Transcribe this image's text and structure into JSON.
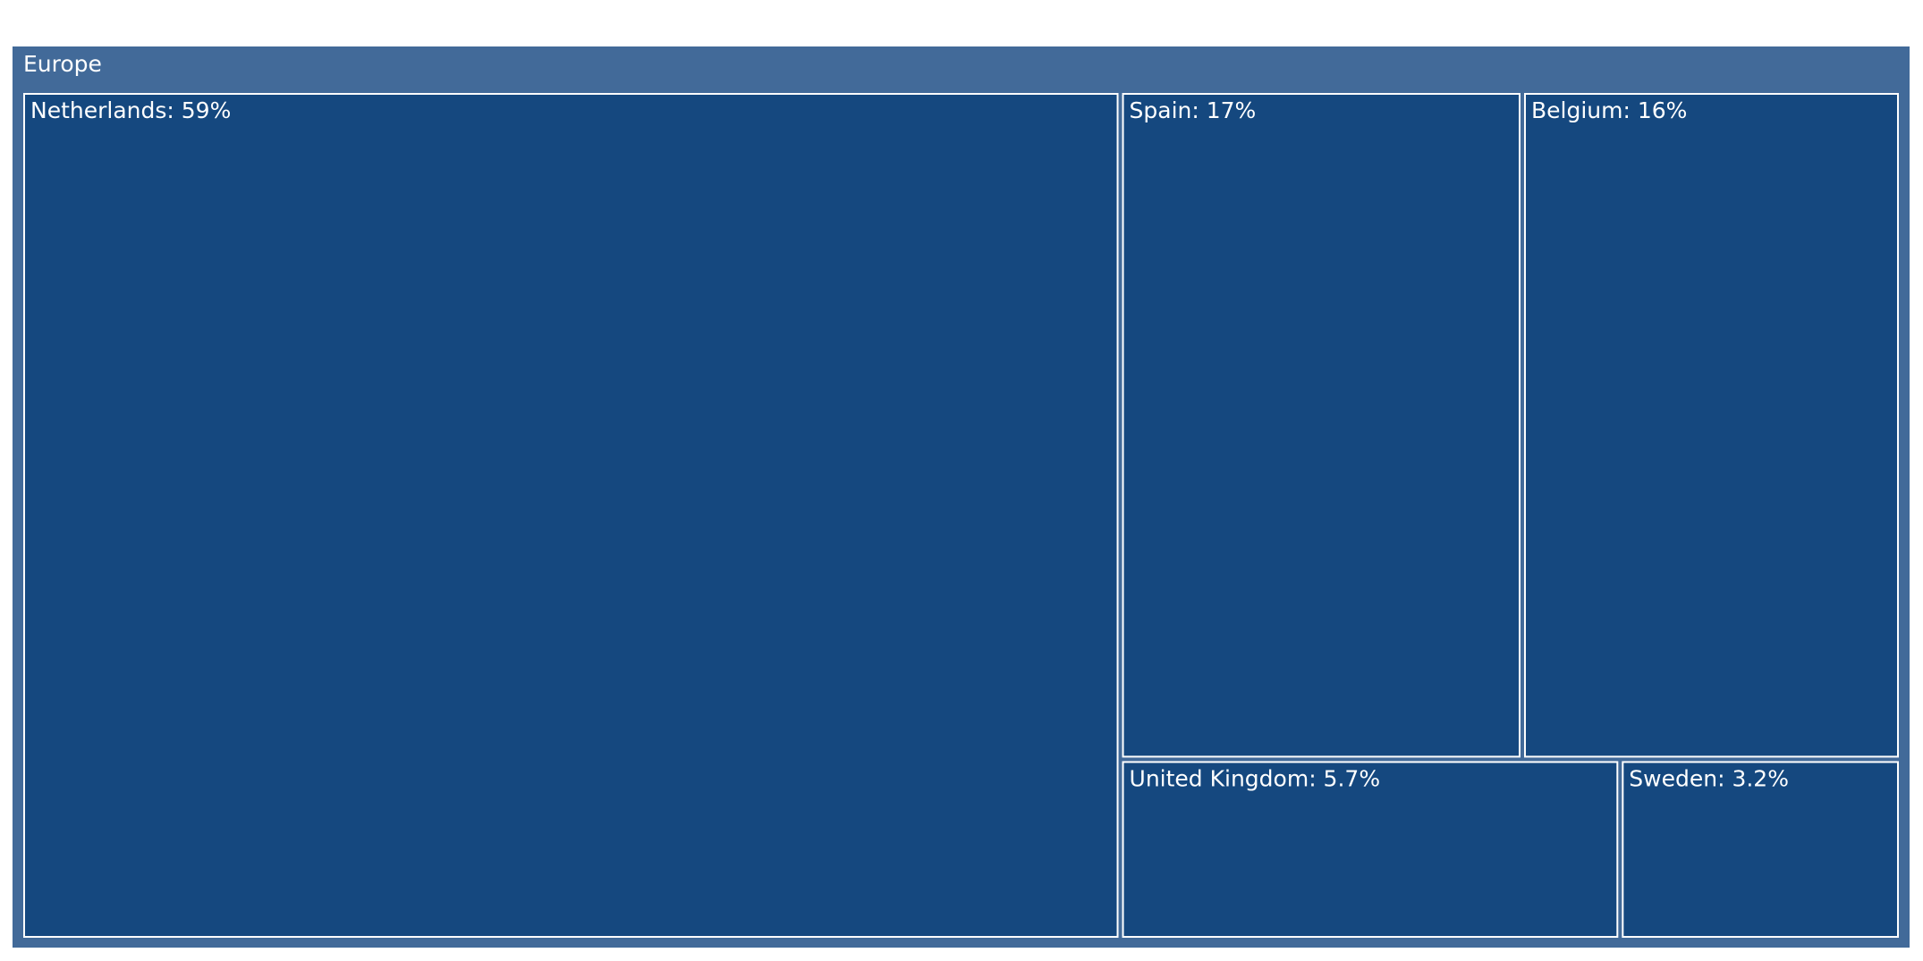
{
  "chart_data": {
    "type": "treemap",
    "root": "Europe",
    "values": [
      59,
      17,
      16,
      5.7,
      3.2
    ],
    "value_labels": [
      "Netherlands: 59%",
      "Spain: 17%",
      "Belgium: 16%",
      "United Kingdom: 5.7%",
      "Sweden: 3.2%"
    ],
    "color": "#15487f",
    "root_color": "#426a99"
  }
}
